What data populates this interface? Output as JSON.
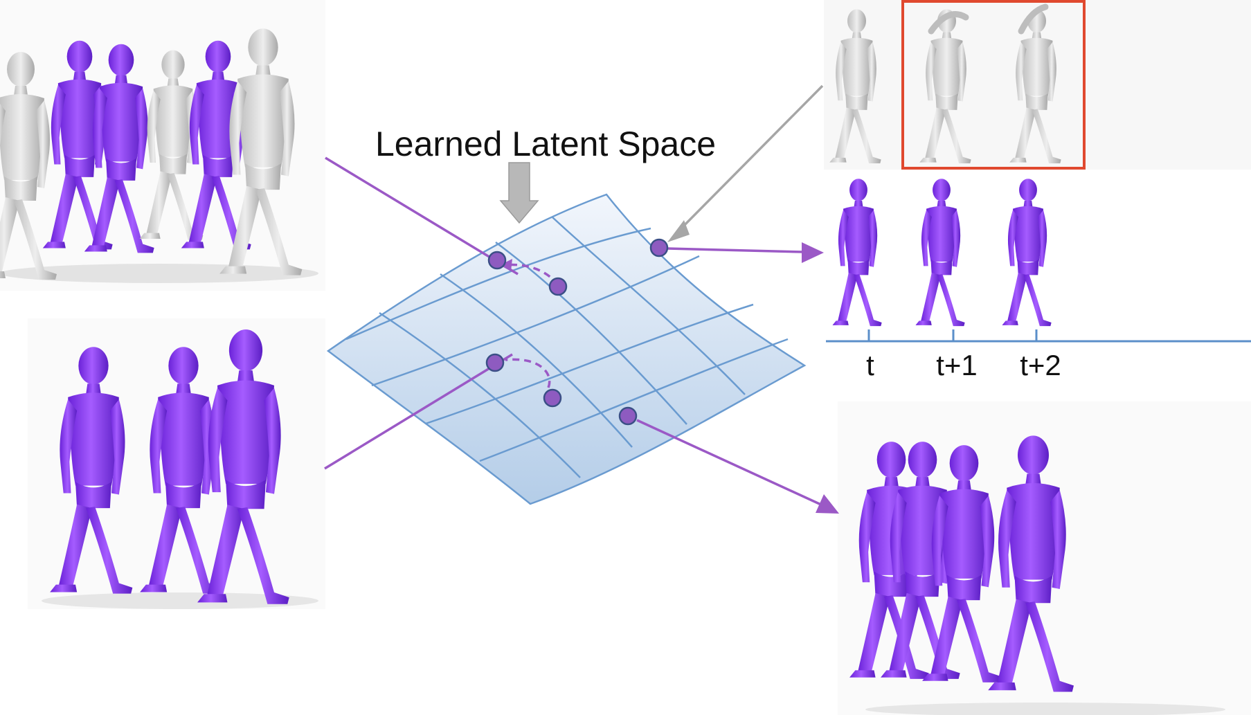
{
  "title": "Learned Latent Space",
  "timeline": {
    "ticks": [
      "t",
      "t+1",
      "t+2"
    ]
  },
  "colors": {
    "purple_figure": "#8b3cf0",
    "purple_shadow": "#5b1ec4",
    "gray_figure": "#d4d4d4",
    "connector_purple": "#9b59c6",
    "connector_gray": "#a6a6a6",
    "grid_line": "#6a9bd0",
    "surface_top": "#f2f6fc",
    "surface_bottom": "#b4cde8",
    "highlight_box": "#e0492f",
    "timeline": "#5b8fc9"
  },
  "icons": [
    "down-arrow-icon",
    "human-figure-icon"
  ]
}
